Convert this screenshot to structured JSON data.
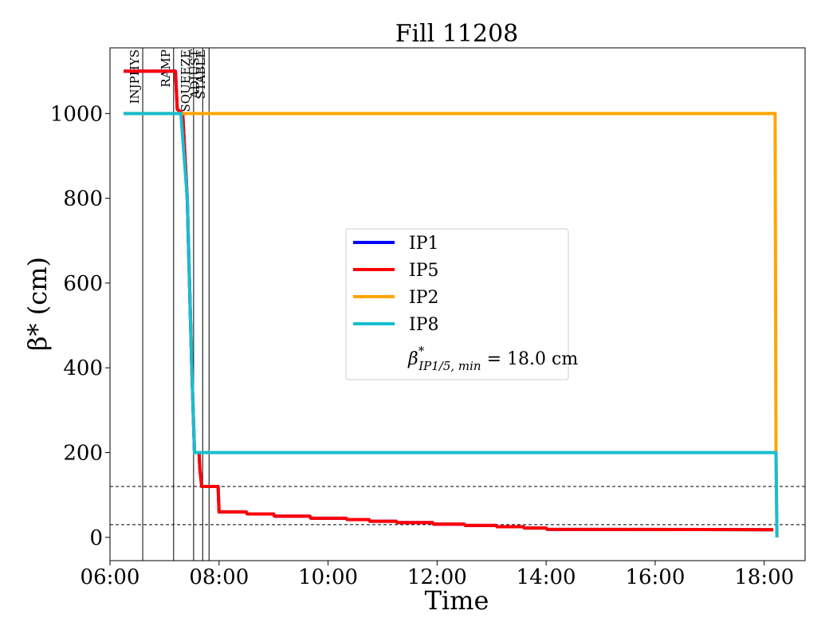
{
  "chart_data": {
    "type": "line",
    "title": "Fill 11208",
    "xlabel": "Time",
    "ylabel": "β* (cm)",
    "xlim": [
      "06:00",
      "18:45"
    ],
    "ylim": [
      -55,
      1155
    ],
    "xticks": [
      "06:00",
      "08:00",
      "10:00",
      "12:00",
      "14:00",
      "16:00",
      "18:00"
    ],
    "yticks": [
      0,
      200,
      400,
      600,
      800,
      1000
    ],
    "grid": false,
    "legend_position": "center",
    "phases": [
      {
        "label": "INJPHYS",
        "time": "06:36"
      },
      {
        "label": "RAMP",
        "time": "07:10"
      },
      {
        "label": "SQUEEZE",
        "time": "07:32"
      },
      {
        "label": "ADJUST",
        "time": "07:42"
      },
      {
        "label": "STABLE",
        "time": "07:49"
      }
    ],
    "reference_lines": [
      120,
      30
    ],
    "series": [
      {
        "name": "IP1",
        "color": "#0000ff",
        "points": [
          [
            "06:15",
            1100
          ],
          [
            "07:10",
            1100
          ],
          [
            "07:12",
            1100
          ],
          [
            "07:14",
            1010
          ],
          [
            "07:20",
            1000
          ],
          [
            "07:25",
            800
          ],
          [
            "07:30",
            400
          ],
          [
            "07:33",
            200
          ],
          [
            "07:38",
            200
          ],
          [
            "07:39",
            160
          ],
          [
            "07:41",
            120
          ],
          [
            "07:59",
            120
          ],
          [
            "08:00",
            60
          ],
          [
            "08:30",
            60
          ],
          [
            "08:31",
            55
          ],
          [
            "09:00",
            55
          ],
          [
            "09:01",
            50
          ],
          [
            "09:40",
            50
          ],
          [
            "09:41",
            45
          ],
          [
            "10:20",
            45
          ],
          [
            "10:21",
            42
          ],
          [
            "10:45",
            42
          ],
          [
            "10:46",
            38
          ],
          [
            "11:15",
            38
          ],
          [
            "11:16",
            35
          ],
          [
            "11:55",
            35
          ],
          [
            "11:56",
            31
          ],
          [
            "12:30",
            31
          ],
          [
            "12:31",
            28
          ],
          [
            "13:05",
            28
          ],
          [
            "13:06",
            25
          ],
          [
            "13:35",
            25
          ],
          [
            "13:36",
            22
          ],
          [
            "14:00",
            22
          ],
          [
            "14:01",
            19
          ],
          [
            "18:10",
            18
          ]
        ]
      },
      {
        "name": "IP5",
        "color": "#ff0000",
        "points": [
          [
            "06:15",
            1100
          ],
          [
            "07:10",
            1100
          ],
          [
            "07:12",
            1100
          ],
          [
            "07:14",
            1010
          ],
          [
            "07:20",
            1000
          ],
          [
            "07:25",
            800
          ],
          [
            "07:30",
            400
          ],
          [
            "07:33",
            200
          ],
          [
            "07:38",
            200
          ],
          [
            "07:39",
            160
          ],
          [
            "07:41",
            120
          ],
          [
            "07:59",
            120
          ],
          [
            "08:00",
            60
          ],
          [
            "08:30",
            60
          ],
          [
            "08:31",
            55
          ],
          [
            "09:00",
            55
          ],
          [
            "09:01",
            50
          ],
          [
            "09:40",
            50
          ],
          [
            "09:41",
            45
          ],
          [
            "10:20",
            45
          ],
          [
            "10:21",
            42
          ],
          [
            "10:45",
            42
          ],
          [
            "10:46",
            38
          ],
          [
            "11:15",
            38
          ],
          [
            "11:16",
            35
          ],
          [
            "11:55",
            35
          ],
          [
            "11:56",
            31
          ],
          [
            "12:30",
            31
          ],
          [
            "12:31",
            28
          ],
          [
            "13:05",
            28
          ],
          [
            "13:06",
            25
          ],
          [
            "13:35",
            25
          ],
          [
            "13:36",
            22
          ],
          [
            "14:00",
            22
          ],
          [
            "14:01",
            19
          ],
          [
            "18:10",
            18
          ]
        ]
      },
      {
        "name": "IP2",
        "color": "#ffa500",
        "points": [
          [
            "06:15",
            1000
          ],
          [
            "07:20",
            1000
          ],
          [
            "18:12",
            1000
          ],
          [
            "18:13",
            200
          ],
          [
            "18:14",
            0
          ]
        ]
      },
      {
        "name": "IP8",
        "color": "#17becf",
        "points": [
          [
            "06:15",
            1000
          ],
          [
            "07:18",
            1000
          ],
          [
            "07:25",
            800
          ],
          [
            "07:30",
            400
          ],
          [
            "07:33",
            200
          ],
          [
            "18:13",
            200
          ],
          [
            "18:14",
            0
          ]
        ]
      }
    ],
    "legend_extra": {
      "beta_symbol": "β",
      "star": "*",
      "subscript": "IP1/5, min",
      "value_text": " = 18.0 cm"
    }
  }
}
